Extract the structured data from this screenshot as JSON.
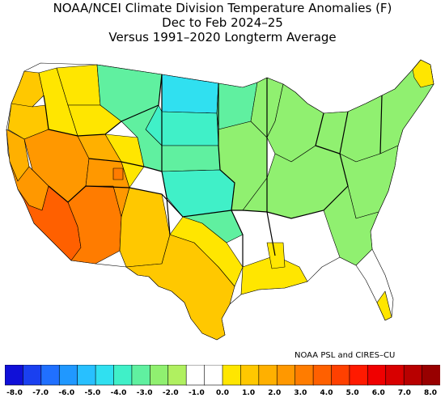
{
  "title": {
    "line1": "NOAA/NCEI Climate Division Temperature Anomalies (F)",
    "line2": "Dec to Feb 2024–25",
    "line3": "Versus 1991–2020 Longterm Average"
  },
  "credit": "NOAA PSL and CIRES–CU",
  "colorbar": {
    "ticks": [
      "-8.0",
      "-7.0",
      "-6.0",
      "-5.0",
      "-4.0",
      "-3.0",
      "-2.0",
      "-1.0",
      "0.0",
      "1.0",
      "2.0",
      "3.0",
      "4.0",
      "5.0",
      "6.0",
      "7.0",
      "8.0"
    ],
    "colors": [
      "#1010d8",
      "#1a40f0",
      "#2070ff",
      "#2098ff",
      "#28c0ff",
      "#30e0f0",
      "#40f0c8",
      "#60f0a0",
      "#90f070",
      "#b0f060",
      "#ffffff",
      "#ffffff",
      "#ffe600",
      "#ffc800",
      "#ffb000",
      "#ff9800",
      "#ff7c00",
      "#ff6000",
      "#ff4000",
      "#ff1a00",
      "#f00000",
      "#d80000",
      "#b80000",
      "#980000"
    ]
  },
  "map": {
    "colors": {
      "neutral": "#ffffff",
      "slight_cool": "#90f070",
      "cool": "#60f0a0",
      "cooler": "#40f0c8",
      "coolest": "#30e0f0",
      "slight_warm": "#ffe600",
      "warm": "#ffc800",
      "warmer": "#ffb000",
      "hot": "#ff9800",
      "hottest": "#ff7c00",
      "peak": "#ff6000",
      "outline": "#000000"
    }
  }
}
